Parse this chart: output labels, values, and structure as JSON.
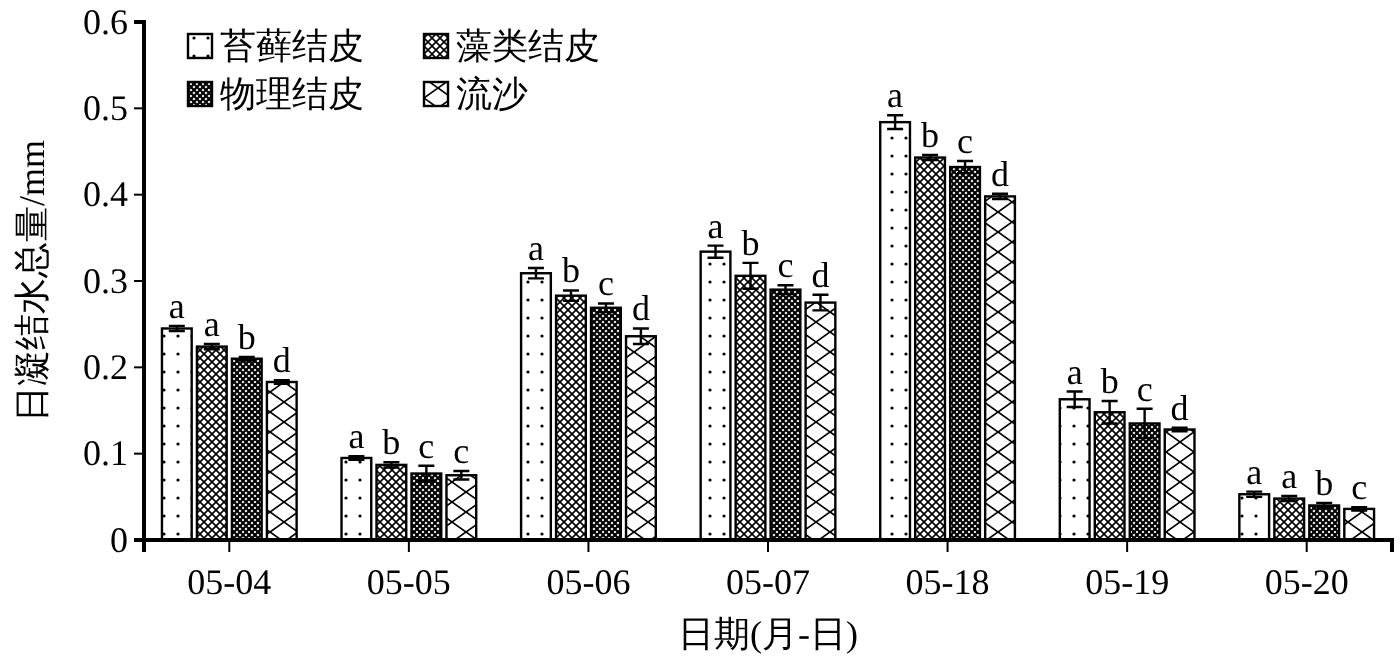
{
  "chart_data": {
    "type": "bar",
    "xlabel": "日期(月-日)",
    "ylabel": "日凝结水总量/mm",
    "categories": [
      "05-04",
      "05-05",
      "05-06",
      "05-07",
      "05-18",
      "05-19",
      "05-20"
    ],
    "ylim": [
      0,
      0.6
    ],
    "yticks": [
      0,
      0.1,
      0.2,
      0.3,
      0.4,
      0.5,
      0.6
    ],
    "grid": false,
    "legend": "top left",
    "series": [
      {
        "name": "苔藓结皮",
        "color": "#000000",
        "values": [
          0.245,
          0.095,
          0.309,
          0.334,
          0.484,
          0.163,
          0.053
        ],
        "errors": [
          0.003,
          0.002,
          0.006,
          0.007,
          0.008,
          0.009,
          0.003
        ],
        "value_labels": [
          "a",
          "a",
          "a",
          "a",
          "a",
          "a",
          "a"
        ]
      },
      {
        "name": "藻类结皮",
        "color": "#000000",
        "values": [
          0.224,
          0.087,
          0.283,
          0.306,
          0.443,
          0.148,
          0.048
        ],
        "errors": [
          0.003,
          0.003,
          0.006,
          0.015,
          0.003,
          0.013,
          0.003
        ],
        "value_labels": [
          "a",
          "b",
          "b",
          "b",
          "b",
          "b",
          "a"
        ]
      },
      {
        "name": "物理结皮",
        "color": "#000000",
        "values": [
          0.21,
          0.077,
          0.269,
          0.29,
          0.432,
          0.135,
          0.04
        ],
        "errors": [
          0.002,
          0.009,
          0.005,
          0.005,
          0.007,
          0.017,
          0.003
        ],
        "value_labels": [
          "b",
          "c",
          "c",
          "c",
          "c",
          "c",
          "b"
        ]
      },
      {
        "name": "流沙",
        "color": "#000000",
        "values": [
          0.183,
          0.075,
          0.236,
          0.275,
          0.398,
          0.128,
          0.036
        ],
        "errors": [
          0.002,
          0.005,
          0.009,
          0.009,
          0.003,
          0.002,
          0.002
        ],
        "value_labels": [
          "d",
          "c",
          "d",
          "d",
          "d",
          "d",
          "c"
        ]
      }
    ]
  }
}
